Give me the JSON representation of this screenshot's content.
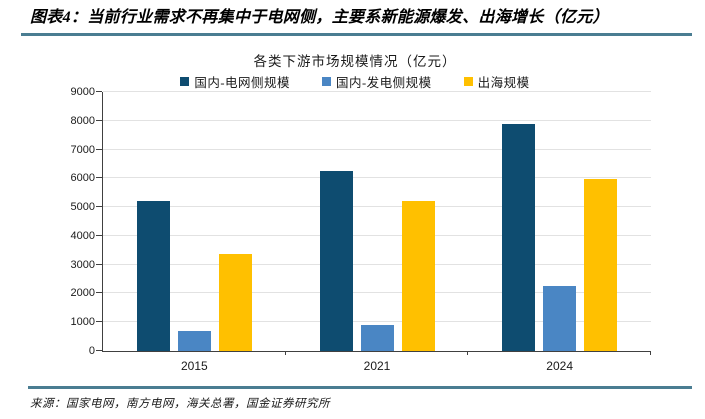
{
  "report": {
    "figure_title": "图表4：当前行业需求不再集中于电网侧，主要系新能源爆发、出海增长（亿元）",
    "source": "来源：国家电网，南方电网，海关总署，国金证券研究所"
  },
  "colors": {
    "grid_side": "#0e4c70",
    "gen_side": "#4a86c4",
    "overseas": "#ffc000",
    "rule": "#4a7d92",
    "axis": "#404040",
    "gridline": "#e2e2e2"
  },
  "chart_data": {
    "type": "bar",
    "title": "各类下游市场规模情况（亿元）",
    "categories": [
      "2015",
      "2021",
      "2024"
    ],
    "series": [
      {
        "key": "grid-side",
        "name": "国内-电网侧规模",
        "color_key": "grid_side",
        "values": [
          5200,
          6260,
          7880
        ]
      },
      {
        "key": "gen-side",
        "name": "国内-发电侧规模",
        "color_key": "gen_side",
        "values": [
          700,
          900,
          2260
        ]
      },
      {
        "key": "overseas",
        "name": "出海规模",
        "color_key": "overseas",
        "values": [
          3380,
          5200,
          5980
        ]
      }
    ],
    "ylim": [
      0,
      9000
    ],
    "ytick_step": 1000,
    "yticks": [
      0,
      1000,
      2000,
      3000,
      4000,
      5000,
      6000,
      7000,
      8000,
      9000
    ],
    "grid": true,
    "legend_position": "top"
  }
}
